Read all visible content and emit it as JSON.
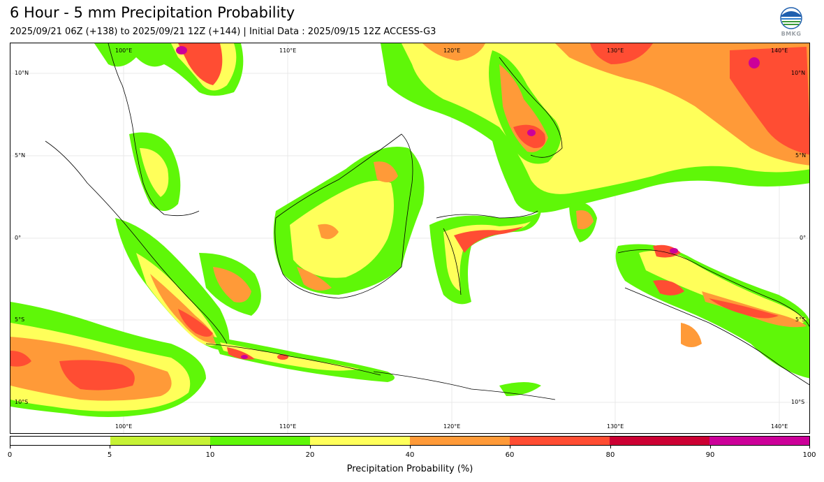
{
  "title": "6 Hour - 5 mm Precipitation Probability",
  "subtitle": "2025/09/21 06Z (+138) to 2025/09/21 12Z (+144) | Initial Data : 2025/09/15 12Z ACCESS-G3",
  "logo_text": "BMKG",
  "map": {
    "lon_labels": [
      "100°E",
      "110°E",
      "120°E",
      "130°E",
      "140°E"
    ],
    "lat_labels": [
      "10°N",
      "5°N",
      "0°",
      "5°S",
      "10°S"
    ]
  },
  "colorbar": {
    "label": "Precipitation Probability (%)",
    "ticks": [
      "0",
      "5",
      "10",
      "20",
      "40",
      "60",
      "80",
      "90",
      "100"
    ],
    "colors": [
      "#ffffff",
      "#c6f235",
      "#5ff708",
      "#ffff5a",
      "#ff9a38",
      "#ff4d33",
      "#cc0033",
      "#cc0099"
    ]
  }
}
